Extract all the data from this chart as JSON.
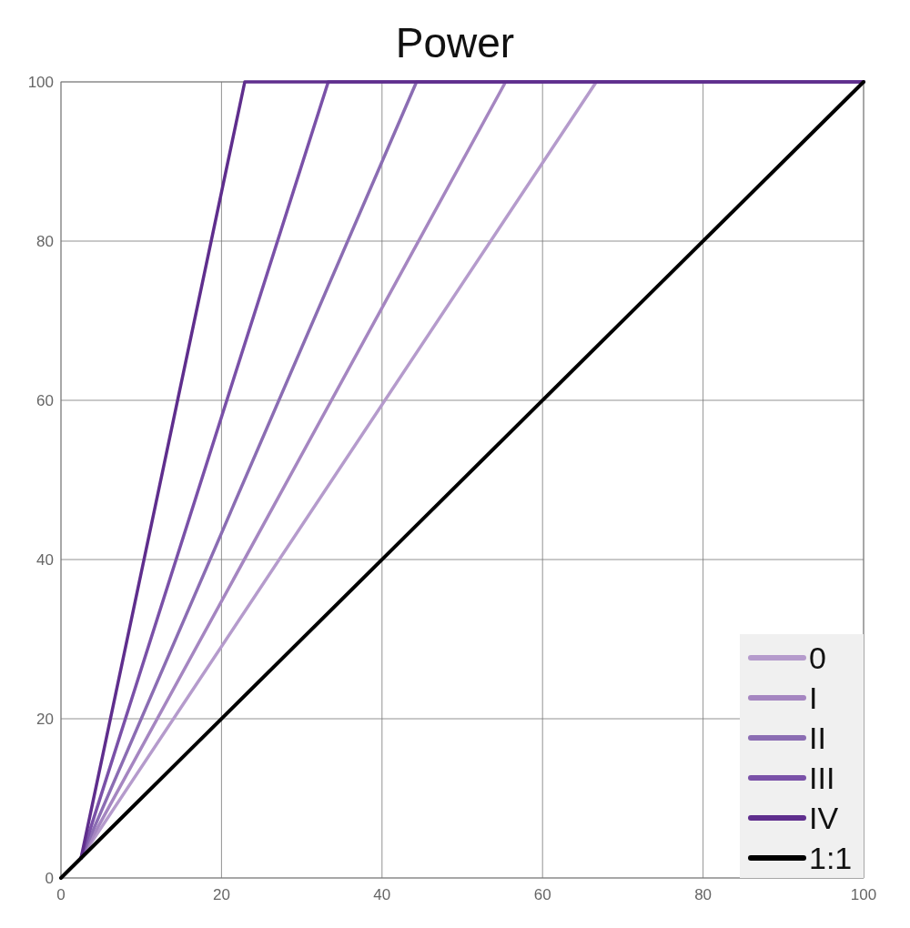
{
  "chart_data": {
    "type": "line",
    "title": "Power",
    "xlim": [
      0,
      100
    ],
    "ylim": [
      0,
      100
    ],
    "xticks": [
      0,
      20,
      40,
      60,
      80,
      100
    ],
    "yticks": [
      0,
      20,
      40,
      60,
      80,
      100
    ],
    "grid": true,
    "legend": "bottom right",
    "marker": "none",
    "line_style": "solid",
    "series": [
      {
        "name": "0",
        "color": "#b59bcc",
        "x": [
          2.5,
          66.7,
          100
        ],
        "values": [
          2.5,
          100,
          100
        ]
      },
      {
        "name": "I",
        "color": "#a586c1",
        "x": [
          2.5,
          55.4,
          100
        ],
        "values": [
          2.5,
          100,
          100
        ]
      },
      {
        "name": "II",
        "color": "#8b6db3",
        "x": [
          2.5,
          44.3,
          100
        ],
        "values": [
          2.5,
          100,
          100
        ]
      },
      {
        "name": "III",
        "color": "#7a51a8",
        "x": [
          2.5,
          33.3,
          100
        ],
        "values": [
          2.5,
          100,
          100
        ]
      },
      {
        "name": "IV",
        "color": "#5f2e8d",
        "x": [
          2.5,
          22.9,
          100
        ],
        "values": [
          2.5,
          100,
          100
        ]
      },
      {
        "name": "1:1",
        "color": "#000000",
        "x": [
          0,
          100
        ],
        "values": [
          0,
          100
        ]
      }
    ]
  }
}
